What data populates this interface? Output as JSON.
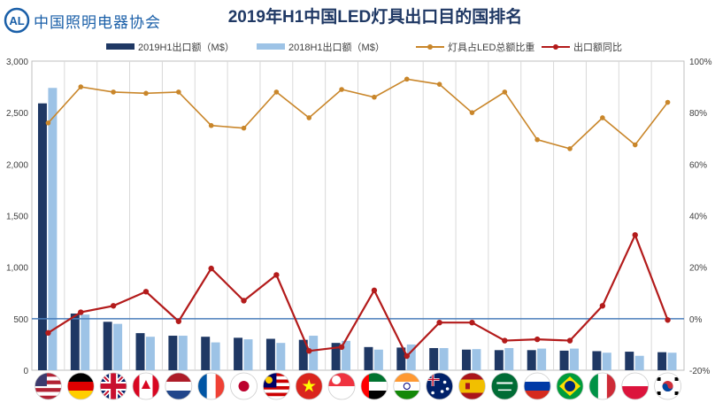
{
  "logo": {
    "text": "中国照明电器协会"
  },
  "chart_data": {
    "type": "bar",
    "title": "2019年H1中国LED灯具出口目的国排名",
    "categories": [
      "美国",
      "德国",
      "英国",
      "加拿大",
      "荷兰",
      "法国",
      "日本",
      "马来西亚",
      "越南",
      "新加坡",
      "阿联酋",
      "印度",
      "澳大利亚",
      "西班牙",
      "沙特阿拉伯",
      "俄罗斯",
      "巴西",
      "意大利",
      "波兰",
      "韩国"
    ],
    "series": [
      {
        "name": "2019H1出口额（M$）",
        "type": "bar",
        "axis": "left",
        "color": "#1f3864",
        "values": [
          2590,
          550,
          470,
          360,
          335,
          325,
          315,
          305,
          295,
          265,
          225,
          220,
          215,
          200,
          195,
          195,
          190,
          185,
          180,
          175
        ]
      },
      {
        "name": "2018H1出口额（M$）",
        "type": "bar",
        "axis": "left",
        "color": "#9dc3e6",
        "values": [
          2740,
          540,
          450,
          325,
          335,
          270,
          300,
          265,
          335,
          285,
          200,
          250,
          215,
          205,
          215,
          210,
          210,
          170,
          140,
          170
        ]
      },
      {
        "name": "灯具占LED总额比重",
        "type": "line",
        "axis": "right",
        "color": "#c9862a",
        "values": [
          76,
          90,
          88,
          87.5,
          88,
          75,
          74,
          88,
          78,
          89,
          86,
          93,
          91,
          80,
          88,
          69.5,
          66,
          78,
          67.5,
          84
        ]
      },
      {
        "name": "出口额同比",
        "type": "line",
        "axis": "right",
        "color": "#b31b1b",
        "values": [
          -5.5,
          2.5,
          5,
          10.5,
          -1,
          19.5,
          7,
          17,
          -12.5,
          -11,
          11,
          -14.5,
          -1.5,
          -1.5,
          -8.5,
          -8,
          -8.5,
          5,
          32.5,
          -0.5
        ]
      }
    ],
    "y_left": {
      "min": 0,
      "max": 3000,
      "ticks": [
        "0",
        "500",
        "1,000",
        "1,500",
        "2,000",
        "2,500",
        "3,000"
      ],
      "tick_values": [
        0,
        500,
        1000,
        1500,
        2000,
        2500,
        3000
      ]
    },
    "y_right": {
      "min": -20,
      "max": 100,
      "ticks": [
        "-20%",
        "0%",
        "20%",
        "40%",
        "60%",
        "80%",
        "100%"
      ],
      "tick_values": [
        -20,
        0,
        20,
        40,
        60,
        80,
        100
      ]
    },
    "grid": "vertical",
    "zero_line_color": "#4a7ebb",
    "legend_position": "top",
    "x_axis_labels": "flag-icons",
    "flags": [
      "us",
      "de",
      "gb",
      "ca",
      "nl",
      "fr",
      "jp",
      "my",
      "vn",
      "sg",
      "ae",
      "in",
      "au",
      "es",
      "sa",
      "ru",
      "br",
      "it",
      "pl",
      "kr"
    ]
  }
}
